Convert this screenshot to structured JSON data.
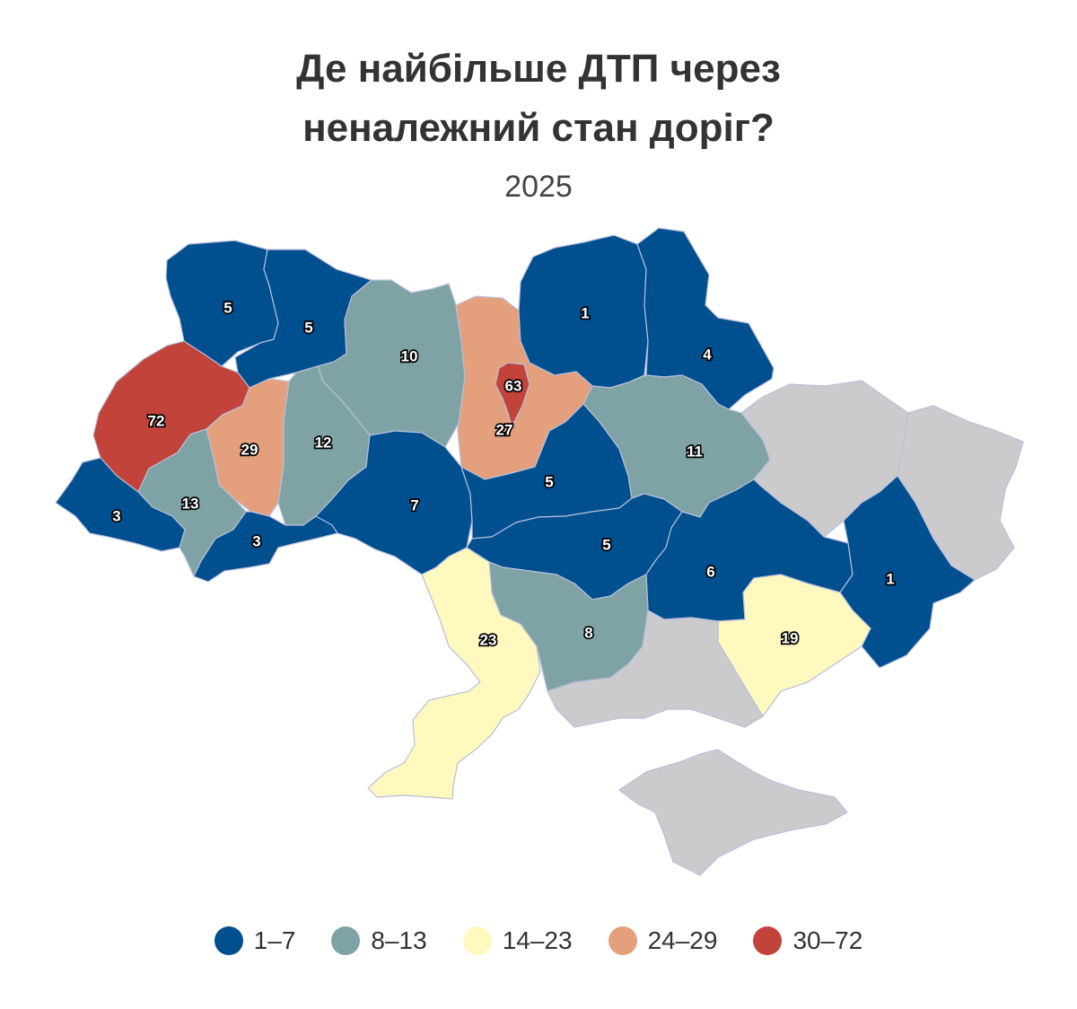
{
  "header": {
    "title_line1": "Де найбільше ДТП через",
    "title_line2": "неналежний стан доріг?",
    "subtitle": "2025"
  },
  "colors": {
    "bin1": "#004f8f",
    "bin2": "#7fa3a4",
    "bin3": "#fff8bf",
    "bin4": "#e4a07c",
    "bin5": "#c2433a",
    "no_data": "#cbcbcd"
  },
  "legend": [
    {
      "label": "1–7",
      "color": "#004f8f"
    },
    {
      "label": "8–13",
      "color": "#7fa3a4"
    },
    {
      "label": "14–23",
      "color": "#fff8bf"
    },
    {
      "label": "24–29",
      "color": "#e4a07c"
    },
    {
      "label": "30–72",
      "color": "#c2433a"
    }
  ],
  "chart_data": {
    "type": "choropleth",
    "regions": [
      {
        "id": "volyn",
        "value": 5
      },
      {
        "id": "rivne",
        "value": 5
      },
      {
        "id": "zhytomyr",
        "value": 10
      },
      {
        "id": "kyiv-oblast",
        "value": 27
      },
      {
        "id": "kyiv-city",
        "value": 63
      },
      {
        "id": "chernihiv",
        "value": 1
      },
      {
        "id": "sumy",
        "value": 4
      },
      {
        "id": "lviv",
        "value": 72
      },
      {
        "id": "ternopil",
        "value": 29
      },
      {
        "id": "khmelnytskyi",
        "value": 12
      },
      {
        "id": "vinnytsia",
        "value": 7
      },
      {
        "id": "cherkasy",
        "value": 5
      },
      {
        "id": "poltava",
        "value": 11
      },
      {
        "id": "kharkiv",
        "value": null
      },
      {
        "id": "luhansk",
        "value": null
      },
      {
        "id": "zakarpattia",
        "value": 3
      },
      {
        "id": "ivano-frankivsk",
        "value": 13
      },
      {
        "id": "chernivtsi",
        "value": 3
      },
      {
        "id": "kirovohrad",
        "value": 5
      },
      {
        "id": "dnipropetrovsk",
        "value": 6
      },
      {
        "id": "donetsk",
        "value": 1
      },
      {
        "id": "odesa",
        "value": 23
      },
      {
        "id": "mykolaiv",
        "value": 8
      },
      {
        "id": "zaporizhzhia",
        "value": 19
      },
      {
        "id": "kherson",
        "value": null
      },
      {
        "id": "crimea",
        "value": null
      }
    ]
  }
}
